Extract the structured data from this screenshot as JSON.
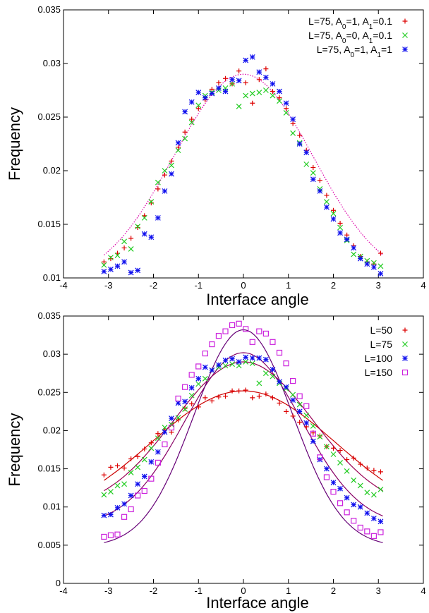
{
  "chart_data": [
    {
      "type": "scatter",
      "title": "",
      "xlabel": "Interface angle",
      "ylabel": "Frequency",
      "xlim": [
        -4,
        4
      ],
      "ylim": [
        0.01,
        0.035
      ],
      "xticks": [
        "-4",
        "-3",
        "-2",
        "-1",
        "0",
        "1",
        "2",
        "3",
        "4"
      ],
      "yticks": [
        "0.01",
        "0.015",
        "0.02",
        "0.025",
        "0.03",
        "0.035"
      ],
      "grid": false,
      "legend_position": "top-right",
      "series": [
        {
          "name": "L=75, A₀=1, A₁=0.1",
          "legend_parts": [
            "L=75, A",
            "0",
            "=1, A",
            "1",
            "=0.1"
          ],
          "marker": "plus",
          "color": "#dd0000",
          "x": [
            -3.1,
            -2.95,
            -2.8,
            -2.65,
            -2.5,
            -2.35,
            -2.2,
            -2.05,
            -1.9,
            -1.75,
            -1.6,
            -1.45,
            -1.3,
            -1.15,
            -1.0,
            -0.85,
            -0.7,
            -0.55,
            -0.4,
            -0.25,
            -0.1,
            0.05,
            0.2,
            0.35,
            0.5,
            0.65,
            0.8,
            0.95,
            1.1,
            1.25,
            1.4,
            1.55,
            1.7,
            1.85,
            2.0,
            2.15,
            2.3,
            2.45,
            2.6,
            2.75,
            2.9,
            3.05
          ],
          "y": [
            0.0115,
            0.0118,
            0.0123,
            0.0128,
            0.0137,
            0.0147,
            0.0158,
            0.017,
            0.0183,
            0.0196,
            0.0209,
            0.0222,
            0.0236,
            0.0248,
            0.0258,
            0.0266,
            0.0276,
            0.0282,
            0.0286,
            0.0281,
            0.0293,
            0.0282,
            0.0263,
            0.0285,
            0.0295,
            0.0274,
            0.0268,
            0.0258,
            0.0244,
            0.0233,
            0.0219,
            0.0203,
            0.0191,
            0.0177,
            0.0163,
            0.0151,
            0.014,
            0.013,
            0.012,
            0.0115,
            0.0113,
            0.0123
          ]
        },
        {
          "name": "L=75, A₀=0, A₁=0.1",
          "legend_parts": [
            "L=75, A",
            "0",
            "=0, A",
            "1",
            "=0.1"
          ],
          "marker": "cross",
          "color": "#22cc22",
          "x": [
            -3.1,
            -2.95,
            -2.8,
            -2.65,
            -2.5,
            -2.35,
            -2.2,
            -2.05,
            -1.9,
            -1.75,
            -1.6,
            -1.45,
            -1.3,
            -1.15,
            -1.0,
            -0.85,
            -0.7,
            -0.55,
            -0.4,
            -0.25,
            -0.1,
            0.05,
            0.2,
            0.35,
            0.5,
            0.65,
            0.8,
            0.95,
            1.1,
            1.25,
            1.4,
            1.55,
            1.7,
            1.85,
            2.0,
            2.15,
            2.3,
            2.45,
            2.6,
            2.75,
            2.9,
            3.05
          ],
          "y": [
            0.0112,
            0.0119,
            0.0121,
            0.0134,
            0.0127,
            0.0148,
            0.0156,
            0.0171,
            0.0189,
            0.02,
            0.0205,
            0.0219,
            0.023,
            0.0245,
            0.0261,
            0.027,
            0.0273,
            0.0275,
            0.0277,
            0.0281,
            0.026,
            0.027,
            0.0272,
            0.0273,
            0.0275,
            0.027,
            0.0265,
            0.0254,
            0.0235,
            0.0226,
            0.0206,
            0.0198,
            0.0183,
            0.0171,
            0.016,
            0.0147,
            0.0135,
            0.0122,
            0.012,
            0.0116,
            0.0114,
            0.0111
          ]
        },
        {
          "name": "L=75, A₀=1, A₁=1",
          "legend_parts": [
            "L=75, A",
            "0",
            "=1, A",
            "1",
            "=1"
          ],
          "marker": "star",
          "color": "#1010ee",
          "x": [
            -3.1,
            -2.95,
            -2.8,
            -2.65,
            -2.5,
            -2.35,
            -2.2,
            -2.05,
            -1.9,
            -1.75,
            -1.6,
            -1.45,
            -1.3,
            -1.15,
            -1.0,
            -0.85,
            -0.7,
            -0.55,
            -0.4,
            -0.25,
            -0.1,
            0.05,
            0.2,
            0.35,
            0.5,
            0.65,
            0.8,
            0.95,
            1.1,
            1.25,
            1.4,
            1.55,
            1.7,
            1.85,
            2.0,
            2.15,
            2.3,
            2.45,
            2.6,
            2.75,
            2.9,
            3.05
          ],
          "y": [
            0.0106,
            0.0108,
            0.0111,
            0.0115,
            0.0105,
            0.0107,
            0.0141,
            0.0138,
            0.0156,
            0.0181,
            0.0197,
            0.0226,
            0.0255,
            0.0264,
            0.0273,
            0.0268,
            0.0272,
            0.0277,
            0.0274,
            0.0285,
            0.0284,
            0.0303,
            0.0306,
            0.0292,
            0.0287,
            0.0281,
            0.0274,
            0.0263,
            0.0248,
            0.0225,
            0.0217,
            0.0192,
            0.0181,
            0.0166,
            0.0155,
            0.0142,
            0.0136,
            0.0128,
            0.0118,
            0.0113,
            0.011,
            0.0104
          ]
        },
        {
          "name": "",
          "marker": "line",
          "style": "dotted",
          "color": "#dd00aa",
          "curve": {
            "peak": 0.029,
            "sigma": 1.55,
            "base": 0.0095
          }
        }
      ]
    },
    {
      "type": "scatter",
      "title": "",
      "xlabel": "Interface angle",
      "ylabel": "Frequency",
      "xlim": [
        -4,
        4
      ],
      "ylim": [
        0,
        0.035
      ],
      "xticks": [
        "-4",
        "-3",
        "-2",
        "-1",
        "0",
        "1",
        "2",
        "3",
        "4"
      ],
      "yticks": [
        "0",
        "0.005",
        "0.01",
        "0.015",
        "0.02",
        "0.025",
        "0.03",
        "0.035"
      ],
      "grid": false,
      "legend_position": "top-right",
      "series": [
        {
          "name": "L=50",
          "marker": "plus",
          "color": "#dd0000",
          "x": [
            -3.1,
            -2.95,
            -2.8,
            -2.65,
            -2.5,
            -2.35,
            -2.2,
            -2.05,
            -1.9,
            -1.75,
            -1.6,
            -1.45,
            -1.3,
            -1.15,
            -1.0,
            -0.85,
            -0.7,
            -0.55,
            -0.4,
            -0.25,
            -0.1,
            0.05,
            0.2,
            0.35,
            0.5,
            0.65,
            0.8,
            0.95,
            1.1,
            1.25,
            1.4,
            1.55,
            1.7,
            1.85,
            2.0,
            2.15,
            2.3,
            2.45,
            2.6,
            2.75,
            2.9,
            3.05
          ],
          "y": [
            0.0142,
            0.0152,
            0.0154,
            0.0151,
            0.0163,
            0.0166,
            0.0176,
            0.0184,
            0.0196,
            0.0201,
            0.0198,
            0.0214,
            0.0229,
            0.0235,
            0.0231,
            0.0243,
            0.0239,
            0.0244,
            0.0245,
            0.0252,
            0.0252,
            0.0253,
            0.0243,
            0.0245,
            0.0248,
            0.0243,
            0.0236,
            0.0225,
            0.0219,
            0.0211,
            0.0205,
            0.0197,
            0.0193,
            0.0179,
            0.0177,
            0.0174,
            0.0162,
            0.0164,
            0.0156,
            0.0151,
            0.0148,
            0.0146
          ]
        },
        {
          "name": "L=75",
          "marker": "cross",
          "color": "#22cc22",
          "x": [
            -3.1,
            -2.95,
            -2.8,
            -2.65,
            -2.5,
            -2.35,
            -2.2,
            -2.05,
            -1.9,
            -1.75,
            -1.6,
            -1.45,
            -1.3,
            -1.15,
            -1.0,
            -0.85,
            -0.7,
            -0.55,
            -0.4,
            -0.25,
            -0.1,
            0.05,
            0.2,
            0.35,
            0.5,
            0.65,
            0.8,
            0.95,
            1.1,
            1.25,
            1.4,
            1.55,
            1.7,
            1.85,
            2.0,
            2.15,
            2.3,
            2.45,
            2.6,
            2.75,
            2.9,
            3.05
          ],
          "y": [
            0.0116,
            0.012,
            0.0128,
            0.013,
            0.0145,
            0.0152,
            0.0162,
            0.0177,
            0.019,
            0.0204,
            0.0208,
            0.0217,
            0.0228,
            0.0246,
            0.0261,
            0.0268,
            0.0279,
            0.0283,
            0.0285,
            0.0287,
            0.0285,
            0.029,
            0.0288,
            0.0262,
            0.0275,
            0.0271,
            0.0262,
            0.0255,
            0.0247,
            0.0234,
            0.022,
            0.0206,
            0.0192,
            0.0179,
            0.0169,
            0.0158,
            0.0147,
            0.0135,
            0.0128,
            0.0119,
            0.0116,
            0.0123
          ]
        },
        {
          "name": "L=100",
          "marker": "star",
          "color": "#1010ee",
          "x": [
            -3.1,
            -2.95,
            -2.8,
            -2.65,
            -2.5,
            -2.35,
            -2.2,
            -2.05,
            -1.9,
            -1.75,
            -1.6,
            -1.45,
            -1.3,
            -1.15,
            -1.0,
            -0.85,
            -0.7,
            -0.55,
            -0.4,
            -0.25,
            -0.1,
            0.05,
            0.2,
            0.35,
            0.5,
            0.65,
            0.8,
            0.95,
            1.1,
            1.25,
            1.4,
            1.55,
            1.7,
            1.85,
            2.0,
            2.15,
            2.3,
            2.45,
            2.6,
            2.75,
            2.9,
            3.05
          ],
          "y": [
            0.0089,
            0.009,
            0.0099,
            0.0104,
            0.0115,
            0.013,
            0.014,
            0.0159,
            0.0172,
            0.0198,
            0.0216,
            0.0236,
            0.0238,
            0.0256,
            0.0268,
            0.0283,
            0.0279,
            0.0286,
            0.0292,
            0.0294,
            0.029,
            0.0296,
            0.0295,
            0.0295,
            0.0293,
            0.028,
            0.0264,
            0.0257,
            0.024,
            0.0225,
            0.021,
            0.0186,
            0.0162,
            0.015,
            0.0132,
            0.0124,
            0.0112,
            0.0103,
            0.01,
            0.0092,
            0.0085,
            0.0081
          ]
        },
        {
          "name": "L=150",
          "marker": "square",
          "color": "#cc22dd",
          "x": [
            -3.1,
            -2.95,
            -2.8,
            -2.65,
            -2.5,
            -2.35,
            -2.2,
            -2.05,
            -1.9,
            -1.75,
            -1.6,
            -1.45,
            -1.3,
            -1.15,
            -1.0,
            -0.85,
            -0.7,
            -0.55,
            -0.4,
            -0.25,
            -0.1,
            0.05,
            0.2,
            0.35,
            0.5,
            0.65,
            0.8,
            0.95,
            1.1,
            1.25,
            1.4,
            1.55,
            1.7,
            1.85,
            2.0,
            2.15,
            2.3,
            2.45,
            2.6,
            2.75,
            2.9,
            3.05
          ],
          "y": [
            0.0061,
            0.0063,
            0.0064,
            0.0087,
            0.0097,
            0.0115,
            0.0121,
            0.0137,
            0.0158,
            0.0182,
            0.0204,
            0.0242,
            0.0257,
            0.0273,
            0.0284,
            0.0301,
            0.0313,
            0.0324,
            0.033,
            0.0338,
            0.034,
            0.0333,
            0.0316,
            0.033,
            0.0327,
            0.0316,
            0.0302,
            0.0288,
            0.0265,
            0.0245,
            0.0232,
            0.0196,
            0.0165,
            0.0139,
            0.012,
            0.0105,
            0.0093,
            0.0082,
            0.0073,
            0.0068,
            0.0062,
            0.0067
          ]
        },
        {
          "name": "",
          "marker": "line",
          "style": "solid",
          "color": "#cc0000",
          "curve": {
            "peak": 0.0252,
            "sigma": 2.05,
            "base": 0.008
          }
        },
        {
          "name": "",
          "marker": "line",
          "style": "solid",
          "color": "#990055",
          "curve": {
            "peak": 0.029,
            "sigma": 1.55,
            "base": 0.0095
          }
        },
        {
          "name": "",
          "marker": "line",
          "style": "solid",
          "color": "#880066",
          "curve": {
            "peak": 0.0302,
            "sigma": 1.3,
            "base": 0.0075
          }
        },
        {
          "name": "",
          "marker": "line",
          "style": "solid",
          "color": "#660077",
          "curve": {
            "peak": 0.0332,
            "sigma": 1.1,
            "base": 0.0048
          }
        }
      ]
    }
  ]
}
